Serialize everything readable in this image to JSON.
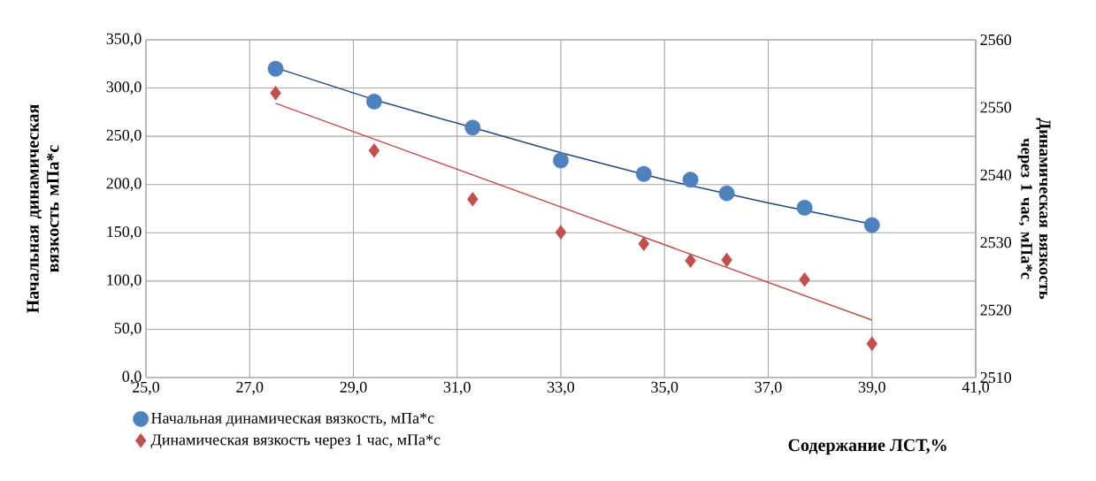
{
  "chart_data": {
    "type": "scatter",
    "xlabel": "Содержание ЛСТ,%",
    "ylabel": "Начальная динамическая вязкость мПа*с",
    "y2label": "Динамическая вязкость через 1 час, мПа*с",
    "xlim": [
      25,
      41
    ],
    "xticks": [
      {
        "value": 25,
        "label": "25,0"
      },
      {
        "value": 27,
        "label": "27,0"
      },
      {
        "value": 29,
        "label": "29,0"
      },
      {
        "value": 31,
        "label": "31,0"
      },
      {
        "value": 33,
        "label": "33,0"
      },
      {
        "value": 35,
        "label": "35,0"
      },
      {
        "value": 37,
        "label": "37,0"
      },
      {
        "value": 39,
        "label": "39,0"
      },
      {
        "value": 41,
        "label": "41,0"
      }
    ],
    "ylim": [
      0,
      350
    ],
    "yticks": [
      {
        "value": 0,
        "label": "0,0"
      },
      {
        "value": 50,
        "label": "50,0"
      },
      {
        "value": 100,
        "label": "100,0"
      },
      {
        "value": 150,
        "label": "150,0"
      },
      {
        "value": 200,
        "label": "200,0"
      },
      {
        "value": 250,
        "label": "250,0"
      },
      {
        "value": 300,
        "label": "300,0"
      },
      {
        "value": 350,
        "label": "350,0"
      }
    ],
    "y2lim": [
      2510,
      2560
    ],
    "y2ticks": [
      2510,
      2520,
      2530,
      2540,
      2550,
      2560
    ],
    "grid": true,
    "legend": "bottom left",
    "series": [
      {
        "name": "Начальная динамическая вязкость, мПа*с",
        "marker": "circle",
        "color": "#4f81bd",
        "x": [
          27.5,
          29.4,
          31.3,
          33.0,
          34.6,
          35.5,
          36.2,
          37.7,
          39.0
        ],
        "values": [
          320,
          286,
          259,
          225,
          211,
          205,
          191,
          176,
          158
        ]
      },
      {
        "name": "Динамическая вязкость через 1 час, мПа*с",
        "marker": "diamond",
        "axis": "y2",
        "color": "#c0504d",
        "x": [
          27.5,
          29.4,
          31.3,
          33.0,
          34.6,
          35.5,
          36.2,
          37.7,
          39.0
        ],
        "values": [
          2552.1,
          2543.6,
          2536.4,
          2531.5,
          2529.8,
          2527.3,
          2527.4,
          2524.5,
          2515.0
        ]
      },
      {
        "type": "line",
        "marker": "none",
        "color": "#1f497d",
        "x": [
          27.5,
          29.4,
          31.3,
          33.0,
          35.0,
          37.0,
          39.0
        ],
        "values": [
          321,
          288,
          259,
          233,
          205,
          181,
          159
        ]
      },
      {
        "type": "line",
        "marker": "none",
        "axis": "y2",
        "color": "#c0504d",
        "x": [
          27.5,
          39.0
        ],
        "values": [
          2550.6,
          2518.5
        ]
      }
    ]
  }
}
